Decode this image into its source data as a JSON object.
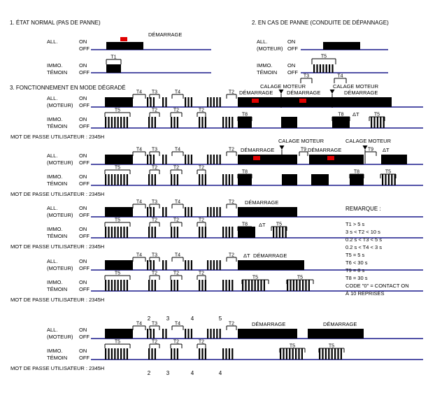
{
  "colors": {
    "line": "#000000",
    "axis": "#1a1a8c",
    "alarm": "#e00000",
    "blue_text": "#1a1a8c",
    "background": "#ffffff"
  },
  "section1": {
    "title": "1. ÉTAT NORMAL (PAS DE PANNE)",
    "all_label": [
      "ALL."
    ],
    "immo_label": [
      "IMMO.",
      "TÉMOIN"
    ],
    "on": "ON",
    "off": "OFF",
    "start": "DÉMARRAGE",
    "t1": "T1"
  },
  "section2": {
    "title": "2. EN CAS DE PANNE (CONDUITE DE DÉPANNAGE)",
    "all_label": [
      "ALL.",
      "(MOTEUR)"
    ],
    "immo_label": [
      "IMMO.",
      "TÉMOIN"
    ],
    "on": "ON",
    "off": "OFF",
    "t5": "T5",
    "t3": "T3",
    "t4": "T4"
  },
  "section3": {
    "title": "3. FONCTIONNEMENT EN MODE DÉGRADÉ",
    "all_label": [
      "ALL.",
      "(MOTEUR)"
    ],
    "immo_label": [
      "IMMO.",
      "TÉMOIN"
    ],
    "on": "ON",
    "off": "OFF",
    "password": "MOT DE PASSE UTILISATEUR : 2345H",
    "start": "DÉMARRAGE",
    "stall": "CALAGE MOTEUR",
    "t2": "T2",
    "t3": "T3",
    "t4": "T4",
    "t5": "T5",
    "t8": "T8",
    "t9": "T9",
    "dt": "ΔT",
    "digits_top": [
      "2",
      "3",
      "4",
      "5"
    ],
    "digits_bottom": [
      "2",
      "3",
      "4",
      "4"
    ]
  },
  "remarks": {
    "title": "REMARQUE :",
    "lines": [
      "T1 > 5 s",
      "3 s < T2 < 10 s",
      "0.2 s < T3 < 5  s",
      "0.2 s < T4 < 3 s",
      "T5 = 5 s",
      "T6 < 30 s",
      "T9 = 8 s",
      "T8 = 30 s",
      "CODE \"0\" = CONTACT ON",
      "À 10 REPRISES"
    ]
  }
}
